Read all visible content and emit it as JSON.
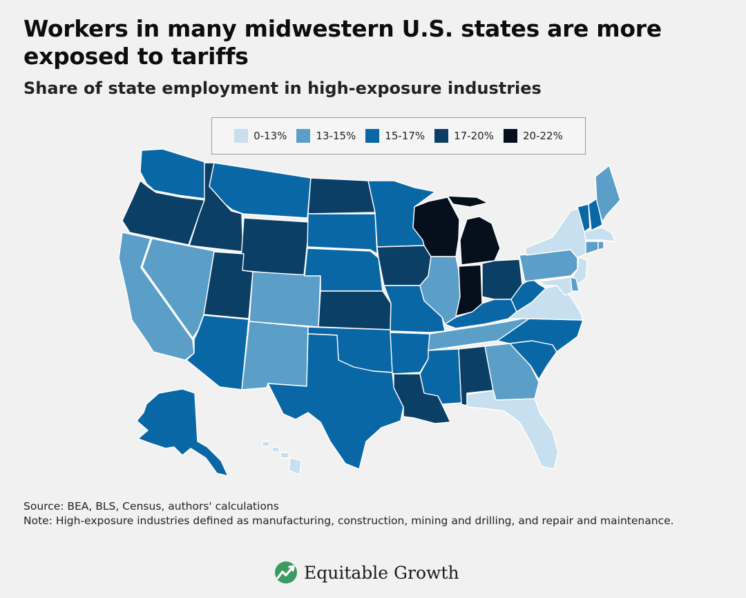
{
  "title": "Workers in many midwestern U.S. states are more exposed to tariffs",
  "subtitle": "Share of state employment in high-exposure industries",
  "source": "Source: BEA, BLS, Census, authors' calculations",
  "note": "Note: High-exposure industries defined as manufacturing, construction, mining and drilling, and repair and maintenance.",
  "brand": "Equitable Growth",
  "colors": {
    "bin0": "#c7dfee",
    "bin1": "#5b9ec8",
    "bin2": "#0a67a6",
    "bin3": "#0c3f65",
    "bin4": "#06101c",
    "brand_green": "#3e9a63"
  },
  "chart_data": {
    "type": "choropleth-map",
    "title": "Workers in many midwestern U.S. states are more exposed to tariffs",
    "subtitle": "Share of state employment in high-exposure industries",
    "legend": {
      "placement": "top-center",
      "items": [
        {
          "label": "0-13%",
          "bin": 0
        },
        {
          "label": "13-15%",
          "bin": 1
        },
        {
          "label": "15-17%",
          "bin": 2
        },
        {
          "label": "17-20%",
          "bin": 3
        },
        {
          "label": "20-22%",
          "bin": 4
        }
      ]
    },
    "states": {
      "WA": 2,
      "OR": 3,
      "CA": 1,
      "NV": 1,
      "ID": 3,
      "MT": 2,
      "WY": 3,
      "UT": 3,
      "AZ": 2,
      "CO": 1,
      "NM": 1,
      "ND": 3,
      "SD": 2,
      "NE": 2,
      "KS": 3,
      "OK": 2,
      "TX": 2,
      "MN": 2,
      "IA": 3,
      "MO": 2,
      "AR": 2,
      "LA": 3,
      "WI": 4,
      "IL": 1,
      "MI": 4,
      "IN": 4,
      "OH": 3,
      "KY": 2,
      "TN": 1,
      "MS": 2,
      "AL": 3,
      "GA": 1,
      "FL": 0,
      "SC": 2,
      "NC": 2,
      "VA": 0,
      "WV": 2,
      "PA": 1,
      "NY": 0,
      "VT": 2,
      "NH": 2,
      "ME": 1,
      "MA": 0,
      "RI": 1,
      "CT": 1,
      "NJ": 0,
      "DE": 1,
      "MD": 0,
      "AK": 2,
      "HI": 0
    }
  }
}
